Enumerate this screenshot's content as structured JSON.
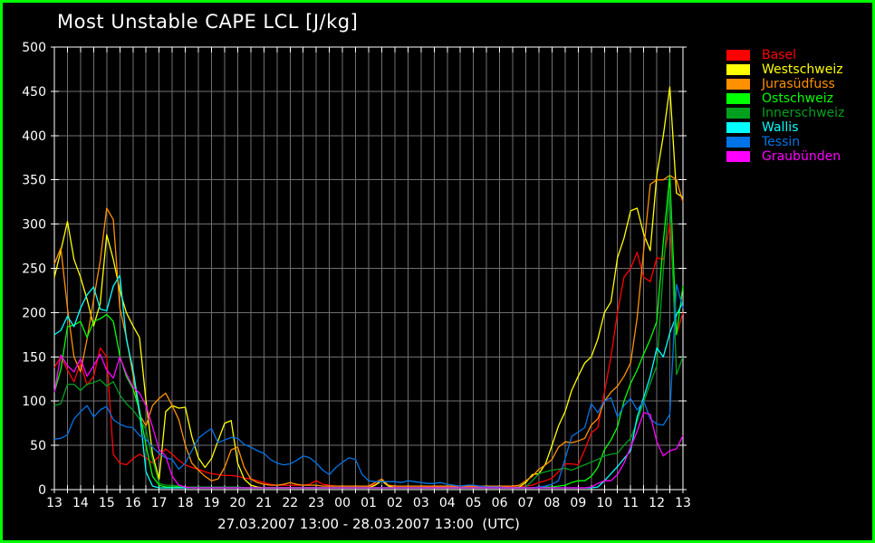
{
  "title": "Most Unstable CAPE LCL [J/kg]",
  "footer": "27.03.2007 13:00 - 28.03.2007 13:00  (UTC)",
  "colors": {
    "background": "#000000",
    "page_border": "#00ff00",
    "axis": "#ffffff",
    "grid": "#6f6f6f",
    "text": "#ffffff"
  },
  "chart_data": {
    "type": "line",
    "title": "Most Unstable CAPE LCL [J/kg]",
    "time_range": "27.03.2007 13:00 - 28.03.2007 13:00 (UTC)",
    "sample_interval_minutes": 15,
    "grid": "on",
    "legend_position": "right",
    "x_axis": {
      "tick_labels": [
        "13",
        "14",
        "15",
        "16",
        "17",
        "18",
        "19",
        "20",
        "21",
        "22",
        "23",
        "00",
        "01",
        "02",
        "03",
        "04",
        "05",
        "06",
        "07",
        "08",
        "09",
        "10",
        "11",
        "12",
        "13"
      ],
      "minor_tick_minutes": 30
    },
    "y_axis": {
      "min": 0,
      "max": 500,
      "tick_step": 50,
      "tick_labels": [
        "0",
        "50",
        "100",
        "150",
        "200",
        "250",
        "300",
        "350",
        "400",
        "450",
        "500"
      ]
    },
    "series": [
      {
        "name": "Basel",
        "color": "#ff0000",
        "values": [
          138,
          150,
          135,
          122,
          143,
          118,
          128,
          160,
          150,
          40,
          30,
          28,
          35,
          40,
          36,
          30,
          38,
          46,
          40,
          33,
          28,
          25,
          23,
          20,
          18,
          17,
          16,
          16,
          15,
          13,
          12,
          10,
          8,
          6,
          5,
          5,
          5,
          5,
          5,
          6,
          10,
          6,
          5,
          4,
          4,
          4,
          4,
          4,
          4,
          6,
          10,
          5,
          4,
          4,
          4,
          4,
          4,
          3,
          3,
          3,
          3,
          3,
          3,
          3,
          3,
          3,
          3,
          3,
          3,
          3,
          3,
          3,
          4,
          5,
          8,
          10,
          13,
          20,
          29,
          29,
          28,
          45,
          64,
          70,
          110,
          150,
          200,
          240,
          250,
          268,
          240,
          235,
          262,
          260,
          300,
          175,
          200
        ]
      },
      {
        "name": "Westschweiz",
        "color": "#ffff00",
        "values": [
          240,
          270,
          303,
          260,
          240,
          215,
          185,
          210,
          288,
          260,
          225,
          200,
          185,
          172,
          100,
          40,
          12,
          88,
          95,
          92,
          93,
          60,
          36,
          25,
          35,
          55,
          75,
          78,
          30,
          12,
          5,
          3,
          2,
          2,
          2,
          2,
          2,
          2,
          2,
          2,
          2,
          2,
          2,
          2,
          2,
          2,
          2,
          2,
          2,
          5,
          10,
          4,
          2,
          2,
          2,
          2,
          2,
          2,
          2,
          2,
          2,
          2,
          2,
          2,
          2,
          2,
          2,
          2,
          2,
          2,
          2,
          3,
          8,
          17,
          18,
          29,
          50,
          72,
          88,
          112,
          128,
          143,
          150,
          170,
          200,
          212,
          262,
          284,
          315,
          318,
          289,
          270,
          355,
          400,
          455,
          335,
          330
        ]
      },
      {
        "name": "Jurasüdfuss",
        "color": "#ff9000",
        "values": [
          255,
          273,
          205,
          150,
          133,
          170,
          215,
          258,
          318,
          305,
          205,
          172,
          130,
          85,
          72,
          95,
          103,
          109,
          95,
          79,
          50,
          30,
          22,
          15,
          10,
          12,
          25,
          45,
          48,
          25,
          12,
          8,
          6,
          5,
          5,
          6,
          8,
          6,
          5,
          5,
          5,
          4,
          4,
          4,
          4,
          4,
          4,
          4,
          4,
          8,
          12,
          5,
          4,
          4,
          4,
          4,
          4,
          4,
          4,
          4,
          4,
          4,
          4,
          4,
          4,
          4,
          4,
          4,
          4,
          4,
          4,
          5,
          10,
          15,
          23,
          28,
          34,
          48,
          54,
          53,
          55,
          58,
          73,
          80,
          100,
          110,
          117,
          128,
          143,
          194,
          270,
          345,
          350,
          350,
          355,
          350,
          325
        ]
      },
      {
        "name": "Ostschweiz",
        "color": "#00ff00",
        "values": [
          110,
          136,
          184,
          186,
          190,
          172,
          190,
          193,
          198,
          190,
          151,
          128,
          114,
          90,
          50,
          15,
          5,
          3,
          3,
          3,
          3,
          3,
          3,
          3,
          3,
          3,
          3,
          3,
          3,
          2,
          2,
          2,
          2,
          2,
          2,
          2,
          2,
          2,
          2,
          2,
          2,
          2,
          2,
          2,
          2,
          2,
          2,
          2,
          2,
          2,
          2,
          2,
          2,
          2,
          2,
          2,
          2,
          2,
          2,
          2,
          2,
          2,
          2,
          2,
          2,
          2,
          2,
          2,
          2,
          2,
          2,
          2,
          2,
          2,
          3,
          3,
          3,
          4,
          5,
          8,
          10,
          10,
          15,
          25,
          45,
          56,
          71,
          100,
          120,
          135,
          153,
          170,
          190,
          280,
          355,
          175,
          230
        ]
      },
      {
        "name": "Innerschweiz",
        "color": "#00a01e",
        "values": [
          95,
          97,
          119,
          119,
          112,
          119,
          121,
          124,
          117,
          122,
          107,
          97,
          90,
          80,
          68,
          34,
          7,
          5,
          5,
          4,
          3,
          3,
          3,
          3,
          3,
          3,
          3,
          3,
          3,
          2,
          2,
          2,
          2,
          2,
          2,
          2,
          2,
          2,
          2,
          2,
          2,
          2,
          2,
          2,
          2,
          2,
          2,
          2,
          2,
          2,
          2,
          2,
          2,
          2,
          2,
          2,
          2,
          2,
          2,
          2,
          2,
          2,
          2,
          2,
          2,
          2,
          2,
          2,
          2,
          2,
          2,
          2,
          3,
          10,
          18,
          20,
          22,
          23,
          24,
          22,
          25,
          28,
          31,
          34,
          38,
          40,
          41,
          50,
          58,
          77,
          99,
          120,
          140,
          248,
          340,
          130,
          150
        ]
      },
      {
        "name": "Wallis",
        "color": "#00ffff",
        "values": [
          175,
          180,
          196,
          184,
          205,
          220,
          229,
          204,
          202,
          230,
          242,
          170,
          136,
          89,
          20,
          4,
          2,
          2,
          2,
          2,
          2,
          2,
          2,
          2,
          2,
          2,
          2,
          2,
          2,
          2,
          2,
          2,
          2,
          2,
          2,
          2,
          2,
          2,
          2,
          2,
          2,
          2,
          2,
          2,
          2,
          2,
          2,
          2,
          2,
          2,
          2,
          2,
          2,
          2,
          2,
          2,
          2,
          2,
          2,
          2,
          2,
          2,
          2,
          2,
          2,
          2,
          2,
          2,
          2,
          2,
          2,
          2,
          2,
          2,
          2,
          2,
          2,
          2,
          2,
          2,
          2,
          2,
          2,
          3,
          10,
          18,
          26,
          35,
          44,
          82,
          104,
          128,
          160,
          150,
          177,
          197,
          212
        ]
      },
      {
        "name": "Tessin",
        "color": "#0073e6",
        "values": [
          57,
          58,
          62,
          80,
          88,
          95,
          82,
          90,
          94,
          79,
          74,
          71,
          70,
          61,
          57,
          48,
          41,
          36,
          34,
          23,
          30,
          44,
          58,
          64,
          69,
          53,
          56,
          59,
          58,
          51,
          48,
          44,
          41,
          34,
          30,
          28,
          29,
          33,
          38,
          36,
          30,
          22,
          17,
          25,
          31,
          36,
          34,
          17,
          10,
          9,
          9,
          9,
          9,
          8,
          10,
          9,
          8,
          7,
          7,
          8,
          6,
          5,
          4,
          5,
          5,
          4,
          3,
          3,
          3,
          2,
          2,
          2,
          2,
          2,
          3,
          4,
          6,
          10,
          35,
          60,
          65,
          70,
          97,
          87,
          100,
          104,
          82,
          95,
          103,
          90,
          100,
          80,
          74,
          73,
          85,
          232,
          205
        ]
      },
      {
        "name": "Graubünden",
        "color": "#ff00ff",
        "values": [
          110,
          152,
          140,
          133,
          148,
          128,
          140,
          153,
          135,
          126,
          150,
          131,
          116,
          109,
          95,
          71,
          45,
          38,
          15,
          5,
          3,
          2,
          2,
          2,
          2,
          2,
          2,
          2,
          2,
          2,
          2,
          2,
          2,
          2,
          2,
          2,
          2,
          2,
          2,
          2,
          2,
          2,
          2,
          2,
          2,
          2,
          2,
          2,
          2,
          2,
          2,
          2,
          2,
          2,
          2,
          2,
          2,
          2,
          2,
          2,
          2,
          2,
          2,
          2,
          2,
          2,
          2,
          2,
          2,
          2,
          2,
          2,
          2,
          2,
          2,
          2,
          2,
          2,
          2,
          2,
          2,
          2,
          3,
          7,
          10,
          10,
          17,
          30,
          48,
          66,
          87,
          85,
          54,
          38,
          44,
          46,
          61
        ]
      }
    ]
  }
}
